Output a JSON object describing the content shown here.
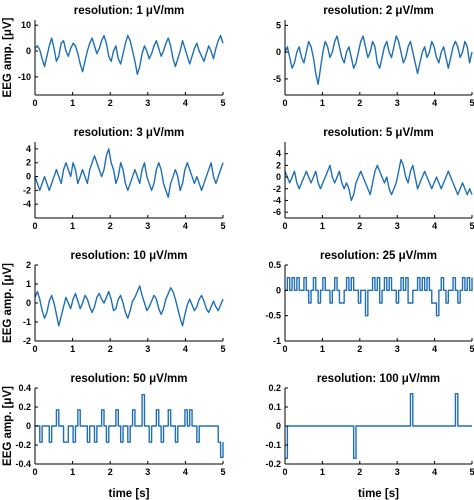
{
  "figure": {
    "ylabel": "EEG amp. [μV]",
    "xlabel": "time [s]",
    "line_color": "#1f6fb5"
  },
  "chart_data": [
    {
      "type": "line",
      "title": "resolution: 1 μV/mm",
      "xlim": [
        0,
        5
      ],
      "ylim": [
        -17,
        12
      ],
      "xticks": [
        0,
        1,
        2,
        3,
        4,
        5
      ],
      "yticks": [
        -10,
        0,
        10
      ],
      "show_ylabel": true,
      "show_xlabel": false,
      "series": [
        {
          "x_start": 0,
          "x_end": 5,
          "values": [
            1,
            2,
            0.5,
            -3,
            -6,
            -2,
            2,
            5,
            1,
            -4,
            -2,
            3,
            4,
            0,
            -2,
            1,
            3,
            2,
            -1,
            -5,
            -8,
            -4,
            0,
            3,
            5,
            2,
            -1,
            1,
            4,
            6,
            3,
            -2,
            -4,
            0,
            2,
            -3,
            -5,
            -1,
            3,
            6,
            4,
            0,
            -4,
            -9,
            -6,
            -1,
            2,
            0,
            -3,
            -1,
            2,
            4,
            1,
            -2,
            0,
            3,
            5,
            2,
            -3,
            -6,
            -3,
            0,
            4,
            1,
            -2,
            -5,
            -2,
            1,
            3,
            0,
            -2,
            -4,
            -1,
            2,
            0,
            -3,
            1,
            4,
            6,
            3
          ]
        }
      ]
    },
    {
      "type": "line",
      "title": "resolution: 2 μV/mm",
      "xlim": [
        0,
        5
      ],
      "ylim": [
        -8,
        6
      ],
      "xticks": [
        0,
        1,
        2,
        3,
        4,
        5
      ],
      "yticks": [
        -5,
        0,
        5
      ],
      "show_ylabel": false,
      "show_xlabel": false,
      "series": [
        {
          "x_start": 0,
          "x_end": 5,
          "values": [
            0,
            1,
            -1,
            -3,
            -2,
            0,
            1,
            -1,
            -2,
            0,
            2,
            1,
            -1,
            -4,
            -6,
            -3,
            0,
            2,
            1,
            -1,
            0,
            2,
            3,
            1,
            -1,
            -2,
            0,
            1,
            -1,
            -3,
            -2,
            0,
            2,
            3,
            1,
            -1,
            0,
            2,
            1,
            -2,
            -3,
            -1,
            1,
            2,
            0,
            -1,
            1,
            3,
            2,
            0,
            -2,
            -1,
            1,
            2,
            0,
            -2,
            -4,
            -2,
            0,
            1,
            -1,
            0,
            2,
            1,
            -1,
            -2,
            0,
            1,
            -1,
            -3,
            -1,
            1,
            2,
            1,
            -1,
            0,
            2,
            1,
            -2,
            0
          ]
        }
      ]
    },
    {
      "type": "line",
      "title": "resolution: 3 μV/mm",
      "xlim": [
        0,
        5
      ],
      "ylim": [
        -6,
        5
      ],
      "xticks": [
        0,
        1,
        2,
        3,
        4,
        5
      ],
      "yticks": [
        -4,
        -2,
        0,
        2,
        4
      ],
      "show_ylabel": false,
      "show_xlabel": false,
      "series": [
        {
          "x_start": 0,
          "x_end": 5,
          "values": [
            0,
            -1,
            -2,
            -1,
            0,
            -1,
            -2,
            -1,
            0,
            1,
            0,
            -1,
            1,
            2,
            1,
            0,
            2,
            1,
            -1,
            0,
            1,
            0,
            -1,
            1,
            2,
            3,
            2,
            1,
            0,
            1,
            3,
            4,
            2,
            1,
            -1,
            0,
            2,
            1,
            -1,
            -2,
            -1,
            0,
            1,
            0,
            -1,
            1,
            2,
            0,
            -1,
            -2,
            -1,
            1,
            2,
            1,
            -1,
            -2,
            -3,
            -1,
            0,
            1,
            0,
            -2,
            -1,
            1,
            2,
            1,
            0,
            -1,
            0,
            -1,
            -2,
            -1,
            0,
            1,
            2,
            0,
            -1,
            0,
            1,
            2
          ]
        }
      ]
    },
    {
      "type": "line",
      "title": "resolution: 5 μV/mm",
      "xlim": [
        0,
        5
      ],
      "ylim": [
        -7,
        6
      ],
      "xticks": [
        0,
        1,
        2,
        3,
        4,
        5
      ],
      "yticks": [
        -6,
        -4,
        -2,
        0,
        2,
        4
      ],
      "show_ylabel": false,
      "show_xlabel": false,
      "series": [
        {
          "x_start": 0,
          "x_end": 5,
          "values": [
            1,
            0,
            -1,
            0,
            1,
            -1,
            -2,
            -1,
            0,
            1,
            0,
            -1,
            0,
            1,
            -1,
            -2,
            -1,
            0,
            1,
            2,
            0,
            -1,
            0,
            1,
            -1,
            -2,
            -1,
            -2,
            -4,
            -3,
            -1,
            0,
            1,
            0,
            -1,
            -2,
            -3,
            -1,
            1,
            2,
            1,
            0,
            -1,
            0,
            -2,
            -3,
            -2,
            -1,
            1,
            3,
            2,
            0,
            -1,
            1,
            2,
            0,
            -2,
            -1,
            0,
            1,
            0,
            -1,
            -2,
            -1,
            0,
            -1,
            -2,
            -1,
            0,
            1,
            0,
            -1,
            -2,
            -3,
            -2,
            -1,
            -2,
            -3,
            -2,
            -3
          ]
        }
      ]
    },
    {
      "type": "line",
      "title": "resolution: 10 μV/mm",
      "xlim": [
        0,
        5
      ],
      "ylim": [
        -2,
        2
      ],
      "xticks": [
        0,
        1,
        2,
        3,
        4,
        5
      ],
      "yticks": [
        -2,
        -1,
        0,
        1,
        2
      ],
      "show_ylabel": true,
      "show_xlabel": false,
      "series": [
        {
          "x_start": 0,
          "x_end": 5,
          "values": [
            0.3,
            0.6,
            0.2,
            -0.4,
            -0.8,
            -0.5,
            0.1,
            0.4,
            0,
            -0.6,
            -1.2,
            -0.7,
            -0.2,
            0.3,
            0,
            -0.3,
            0.2,
            0.5,
            0.1,
            -0.3,
            0,
            0.4,
            0.2,
            -0.2,
            -0.5,
            -0.2,
            0.3,
            0.5,
            0.2,
            0,
            0.3,
            0.6,
            0.2,
            -0.4,
            -0.3,
            0.2,
            0.4,
            0,
            -0.5,
            -0.8,
            -0.4,
            0.1,
            0.3,
            0.6,
            0.9,
            0.4,
            0,
            -0.4,
            -0.2,
            0.1,
            0.4,
            0.2,
            -0.3,
            -0.6,
            -0.3,
            0.2,
            0.5,
            0.8,
            0.6,
            0.2,
            -0.3,
            -0.8,
            -1.2,
            -0.6,
            -0.1,
            0.2,
            -0.1,
            -0.4,
            -0.2,
            0.2,
            0.4,
            0.1,
            -0.3,
            -0.5,
            -0.2,
            0.1,
            -0.2,
            -0.4,
            -0.1,
            0.2
          ]
        }
      ]
    },
    {
      "type": "line",
      "title": "resolution: 25 μV/mm",
      "xlim": [
        0,
        5
      ],
      "ylim": [
        -1,
        0.5
      ],
      "xticks": [
        0,
        1,
        2,
        3,
        4,
        5
      ],
      "yticks": [
        -1,
        -0.5,
        0,
        0.5
      ],
      "show_ylabel": false,
      "show_xlabel": false,
      "series": [
        {
          "x_start": 0,
          "x_end": 5,
          "step": true,
          "values": [
            0,
            0.25,
            0,
            0.25,
            0,
            0.25,
            0,
            0,
            0.25,
            0,
            -0.25,
            0,
            0.25,
            0,
            -0.25,
            0,
            0.25,
            0,
            0,
            -0.25,
            0,
            0.25,
            0,
            -0.25,
            -0.25,
            0,
            0.25,
            0,
            0.25,
            0,
            0,
            -0.25,
            0,
            0,
            -0.5,
            0,
            0,
            0.25,
            0,
            0.25,
            -0.25,
            0,
            0.25,
            0,
            0.25,
            0,
            0,
            -0.25,
            0,
            0.25,
            0,
            0.25,
            -0.25,
            -0.25,
            0,
            0,
            0.25,
            0,
            0.25,
            0,
            0.25,
            0,
            -0.25,
            -0.25,
            -0.5,
            0,
            0.25,
            0,
            -0.25,
            0,
            0,
            0.25,
            0,
            -0.25,
            0,
            0.25,
            0,
            0.25,
            0,
            0.25
          ]
        }
      ]
    },
    {
      "type": "line",
      "title": "resolution: 50 μV/mm",
      "xlim": [
        0,
        5
      ],
      "ylim": [
        -0.4,
        0.4
      ],
      "xticks": [
        0,
        1,
        2,
        3,
        4,
        5
      ],
      "yticks": [
        -0.4,
        -0.2,
        0,
        0.2,
        0.4
      ],
      "show_ylabel": true,
      "show_xlabel": true,
      "series": [
        {
          "x_start": 0,
          "x_end": 5,
          "step": true,
          "values": [
            0,
            0,
            -0.17,
            0,
            0,
            0,
            -0.17,
            0,
            0,
            0.17,
            0,
            0,
            -0.17,
            -0.17,
            0,
            0,
            -0.17,
            0,
            0.17,
            0,
            0,
            0,
            -0.17,
            0,
            0,
            -0.17,
            0,
            0,
            0.17,
            0,
            -0.17,
            0,
            0,
            0,
            0.17,
            0,
            -0.17,
            0,
            0,
            -0.17,
            0,
            0.17,
            0,
            0,
            0,
            0.33,
            0,
            0,
            -0.17,
            0,
            0,
            0.17,
            0,
            -0.17,
            0,
            0,
            0.17,
            0,
            0,
            -0.17,
            0,
            0,
            0,
            0.17,
            0,
            0.17,
            0,
            0,
            -0.17,
            0,
            0,
            0,
            0,
            0,
            0,
            0,
            0,
            -0.17,
            -0.33,
            -0.17
          ]
        }
      ]
    },
    {
      "type": "line",
      "title": "resolution: 100 μV/mm",
      "xlim": [
        0,
        5
      ],
      "ylim": [
        -0.2,
        0.2
      ],
      "xticks": [
        0,
        1,
        2,
        3,
        4,
        5
      ],
      "yticks": [
        -0.2,
        -0.1,
        0,
        0.1,
        0.2
      ],
      "show_ylabel": false,
      "show_xlabel": true,
      "series": [
        {
          "x_start": 0,
          "x_end": 5,
          "step": true,
          "values": [
            -0.17,
            0,
            0,
            0,
            0,
            0,
            0,
            0,
            0,
            0,
            0,
            0,
            0,
            0,
            0,
            0,
            0,
            0,
            0,
            0,
            0,
            0,
            0,
            0,
            0,
            0,
            0,
            0,
            0,
            -0.17,
            0,
            0,
            0,
            0,
            0,
            0,
            0,
            0,
            0,
            0,
            0,
            0,
            0,
            0,
            0,
            0,
            0,
            0,
            0,
            0,
            0,
            0,
            0,
            0.17,
            0,
            0,
            0,
            0,
            0,
            0,
            0,
            0,
            0,
            0,
            0,
            0,
            0,
            0,
            0,
            0,
            0,
            0,
            0.17,
            0,
            0,
            0,
            0,
            0,
            0,
            0
          ]
        }
      ]
    }
  ]
}
